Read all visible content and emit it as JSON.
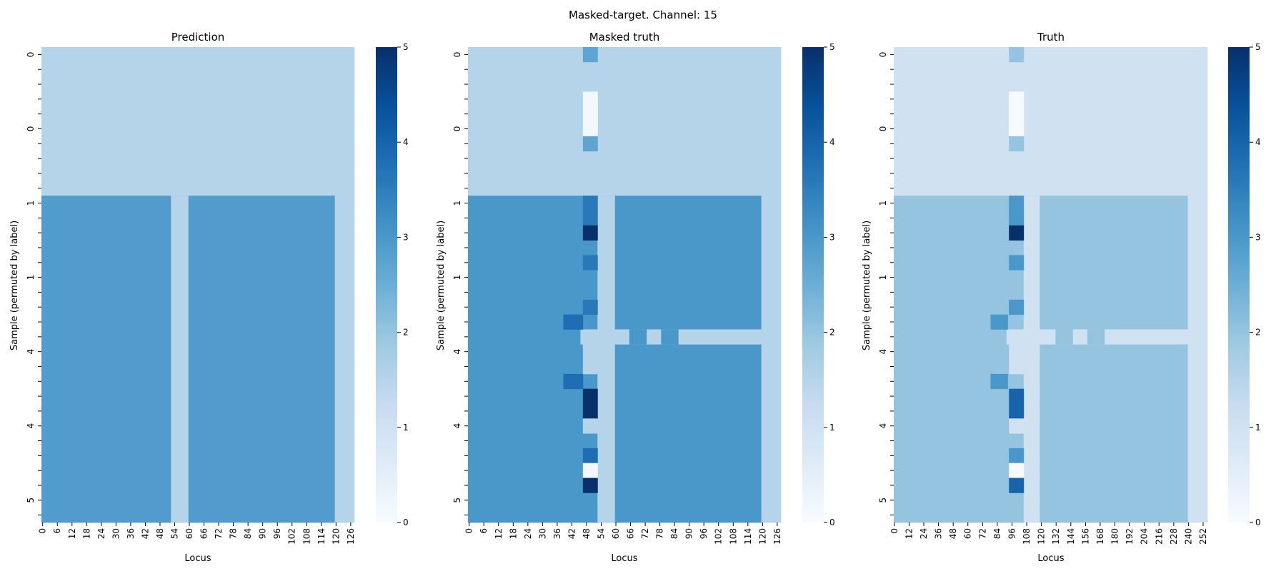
{
  "suptitle": "Masked-target. Channel: 15",
  "colors": {
    "cmap": [
      "#f7fbff",
      "#deebf7",
      "#c6dbef",
      "#9ecae1",
      "#6baed6",
      "#4292c6",
      "#2171b5",
      "#08519c",
      "#08306b"
    ]
  },
  "chart_data": [
    {
      "type": "heatmap",
      "title": "Prediction",
      "xlabel": "Locus",
      "ylabel": "Sample (permuted by label)",
      "n_cols": 128,
      "n_rows": 32,
      "x_tick_step": 6,
      "x_tick_labels": [
        "0",
        "6",
        "12",
        "18",
        "24",
        "30",
        "36",
        "42",
        "48",
        "54",
        "60",
        "66",
        "72",
        "78",
        "84",
        "90",
        "96",
        "102",
        "108",
        "114",
        "120",
        "126"
      ],
      "y_tick_labels": [
        {
          "row": 0,
          "label": "0"
        },
        {
          "row": 5,
          "label": "0"
        },
        {
          "row": 10,
          "label": "1"
        },
        {
          "row": 15,
          "label": "1"
        },
        {
          "row": 20,
          "label": "4"
        },
        {
          "row": 25,
          "label": "4"
        },
        {
          "row": 30,
          "label": "5"
        }
      ],
      "colorbar": {
        "min": 0,
        "max": 5,
        "ticks": [
          "0",
          "1",
          "2",
          "3",
          "4",
          "5"
        ]
      },
      "regions": [
        {
          "rows": [
            0,
            9
          ],
          "cols": [
            0,
            127
          ],
          "value": 1.5
        },
        {
          "rows": [
            10,
            31
          ],
          "cols": [
            0,
            119
          ],
          "value": 2.9
        },
        {
          "rows": [
            10,
            31
          ],
          "cols": [
            53,
            59
          ],
          "value": 1.5
        },
        {
          "rows": [
            10,
            31
          ],
          "cols": [
            120,
            127
          ],
          "value": 1.5
        }
      ]
    },
    {
      "type": "heatmap",
      "title": "Masked truth",
      "xlabel": "Locus",
      "ylabel": "Sample (permuted by label)",
      "n_cols": 128,
      "n_rows": 32,
      "x_tick_step": 6,
      "x_tick_labels": [
        "0",
        "6",
        "12",
        "18",
        "24",
        "30",
        "36",
        "42",
        "48",
        "54",
        "60",
        "66",
        "72",
        "78",
        "84",
        "90",
        "96",
        "102",
        "108",
        "114",
        "120",
        "126"
      ],
      "y_tick_labels": [
        {
          "row": 0,
          "label": "0"
        },
        {
          "row": 5,
          "label": "0"
        },
        {
          "row": 10,
          "label": "1"
        },
        {
          "row": 15,
          "label": "1"
        },
        {
          "row": 20,
          "label": "4"
        },
        {
          "row": 25,
          "label": "4"
        },
        {
          "row": 30,
          "label": "5"
        }
      ],
      "colorbar": {
        "min": 0,
        "max": 5,
        "ticks": [
          "0",
          "1",
          "2",
          "3",
          "4",
          "5"
        ]
      },
      "regions": [
        {
          "rows": [
            0,
            9
          ],
          "cols": [
            0,
            127
          ],
          "value": 1.5
        },
        {
          "rows": [
            10,
            31
          ],
          "cols": [
            0,
            119
          ],
          "value": 3.0
        },
        {
          "rows": [
            10,
            31
          ],
          "cols": [
            53,
            59
          ],
          "value": 1.5
        },
        {
          "rows": [
            10,
            31
          ],
          "cols": [
            120,
            127
          ],
          "value": 1.5
        },
        {
          "rows": [
            19,
            19
          ],
          "cols": [
            46,
            119
          ],
          "value": 1.5
        },
        {
          "rows": [
            19,
            19
          ],
          "cols": [
            66,
            72
          ],
          "value": 3.0
        },
        {
          "rows": [
            19,
            19
          ],
          "cols": [
            79,
            85
          ],
          "value": 3.0
        },
        {
          "rows": [
            0,
            0
          ],
          "cols": [
            47,
            52
          ],
          "value": 2.7
        },
        {
          "rows": [
            3,
            5
          ],
          "cols": [
            47,
            52
          ],
          "value": 0.1
        },
        {
          "rows": [
            6,
            6
          ],
          "cols": [
            47,
            52
          ],
          "value": 2.7
        },
        {
          "rows": [
            10,
            11
          ],
          "cols": [
            47,
            52
          ],
          "value": 3.6
        },
        {
          "rows": [
            12,
            12
          ],
          "cols": [
            47,
            52
          ],
          "value": 5.0
        },
        {
          "rows": [
            14,
            14
          ],
          "cols": [
            47,
            52
          ],
          "value": 3.6
        },
        {
          "rows": [
            17,
            17
          ],
          "cols": [
            47,
            52
          ],
          "value": 3.6
        },
        {
          "rows": [
            18,
            18
          ],
          "cols": [
            39,
            46
          ],
          "value": 3.8
        },
        {
          "rows": [
            20,
            20
          ],
          "cols": [
            47,
            52
          ],
          "value": 1.5
        },
        {
          "rows": [
            21,
            21
          ],
          "cols": [
            47,
            52
          ],
          "value": 1.5
        },
        {
          "rows": [
            22,
            22
          ],
          "cols": [
            39,
            46
          ],
          "value": 3.8
        },
        {
          "rows": [
            23,
            24
          ],
          "cols": [
            47,
            52
          ],
          "value": 5.0
        },
        {
          "rows": [
            25,
            25
          ],
          "cols": [
            47,
            52
          ],
          "value": 1.5
        },
        {
          "rows": [
            27,
            27
          ],
          "cols": [
            47,
            52
          ],
          "value": 3.8
        },
        {
          "rows": [
            28,
            28
          ],
          "cols": [
            47,
            52
          ],
          "value": 0.1
        },
        {
          "rows": [
            29,
            29
          ],
          "cols": [
            47,
            52
          ],
          "value": 5.0
        }
      ]
    },
    {
      "type": "heatmap",
      "title": "Truth",
      "xlabel": "Locus",
      "ylabel": "Sample (permuted by label)",
      "n_cols": 256,
      "n_rows": 32,
      "x_tick_step": 12,
      "x_tick_labels": [
        "0",
        "12",
        "24",
        "36",
        "48",
        "60",
        "72",
        "84",
        "96",
        "108",
        "120",
        "132",
        "144",
        "156",
        "168",
        "180",
        "192",
        "204",
        "216",
        "228",
        "240",
        "252"
      ],
      "y_tick_labels": [
        {
          "row": 0,
          "label": "0"
        },
        {
          "row": 5,
          "label": "0"
        },
        {
          "row": 10,
          "label": "1"
        },
        {
          "row": 15,
          "label": "1"
        },
        {
          "row": 20,
          "label": "4"
        },
        {
          "row": 25,
          "label": "4"
        },
        {
          "row": 30,
          "label": "5"
        }
      ],
      "colorbar": {
        "min": 0,
        "max": 5,
        "ticks": [
          "0",
          "1",
          "2",
          "3",
          "4",
          "5"
        ]
      },
      "regions": [
        {
          "rows": [
            0,
            9
          ],
          "cols": [
            0,
            255
          ],
          "value": 1.0
        },
        {
          "rows": [
            10,
            31
          ],
          "cols": [
            0,
            239
          ],
          "value": 2.0
        },
        {
          "rows": [
            10,
            31
          ],
          "cols": [
            106,
            118
          ],
          "value": 1.0
        },
        {
          "rows": [
            10,
            31
          ],
          "cols": [
            240,
            255
          ],
          "value": 1.0
        },
        {
          "rows": [
            19,
            19
          ],
          "cols": [
            92,
            239
          ],
          "value": 1.0
        },
        {
          "rows": [
            19,
            19
          ],
          "cols": [
            132,
            145
          ],
          "value": 2.0
        },
        {
          "rows": [
            19,
            19
          ],
          "cols": [
            158,
            171
          ],
          "value": 2.0
        },
        {
          "rows": [
            0,
            0
          ],
          "cols": [
            94,
            105
          ],
          "value": 2.0
        },
        {
          "rows": [
            3,
            5
          ],
          "cols": [
            94,
            105
          ],
          "value": 0.0
        },
        {
          "rows": [
            6,
            6
          ],
          "cols": [
            94,
            105
          ],
          "value": 2.0
        },
        {
          "rows": [
            10,
            11
          ],
          "cols": [
            94,
            105
          ],
          "value": 3.0
        },
        {
          "rows": [
            12,
            12
          ],
          "cols": [
            94,
            105
          ],
          "value": 5.0
        },
        {
          "rows": [
            14,
            14
          ],
          "cols": [
            94,
            105
          ],
          "value": 3.0
        },
        {
          "rows": [
            17,
            17
          ],
          "cols": [
            94,
            105
          ],
          "value": 3.0
        },
        {
          "rows": [
            18,
            18
          ],
          "cols": [
            79,
            92
          ],
          "value": 3.0
        },
        {
          "rows": [
            20,
            20
          ],
          "cols": [
            94,
            105
          ],
          "value": 1.0
        },
        {
          "rows": [
            21,
            21
          ],
          "cols": [
            94,
            105
          ],
          "value": 1.0
        },
        {
          "rows": [
            22,
            22
          ],
          "cols": [
            79,
            92
          ],
          "value": 3.0
        },
        {
          "rows": [
            23,
            24
          ],
          "cols": [
            94,
            105
          ],
          "value": 4.0
        },
        {
          "rows": [
            25,
            25
          ],
          "cols": [
            94,
            105
          ],
          "value": 1.0
        },
        {
          "rows": [
            27,
            27
          ],
          "cols": [
            94,
            105
          ],
          "value": 3.0
        },
        {
          "rows": [
            28,
            28
          ],
          "cols": [
            94,
            105
          ],
          "value": 0.0
        },
        {
          "rows": [
            29,
            29
          ],
          "cols": [
            94,
            105
          ],
          "value": 4.0
        }
      ]
    }
  ]
}
